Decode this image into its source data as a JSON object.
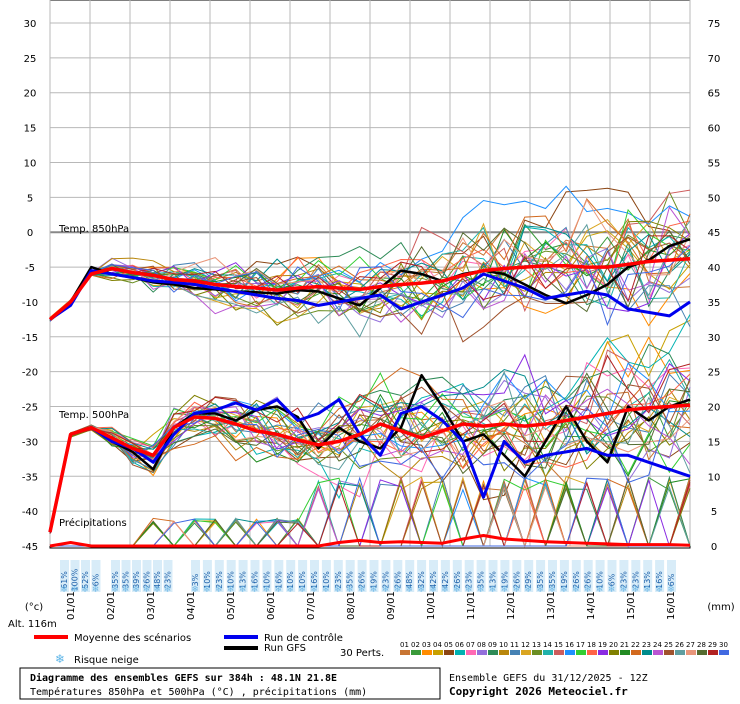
{
  "chart_data": {
    "type": "line",
    "left_axis": {
      "unit": "(°c)",
      "ticks": [
        30,
        25,
        20,
        15,
        10,
        5,
        0,
        -5,
        -10,
        -15,
        -20,
        -25,
        -30,
        -35,
        -40,
        -45
      ],
      "range": [
        -45,
        30
      ]
    },
    "right_axis": {
      "unit": "(mm)",
      "ticks": [
        75,
        70,
        65,
        60,
        55,
        50,
        45,
        40,
        35,
        30,
        25,
        20,
        15,
        10,
        5,
        0
      ],
      "range": [
        0,
        75
      ]
    },
    "x_dates": [
      "01/01",
      "02/01",
      "03/01",
      "04/01",
      "05/01",
      "06/01",
      "07/01",
      "08/01",
      "09/01",
      "10/01",
      "11/01",
      "12/01",
      "13/01",
      "14/01",
      "15/01",
      "16/01"
    ],
    "x_hours_range": [
      0,
      384
    ],
    "panel_labels": {
      "t850": "Temp. 850hPa",
      "t500": "Temp. 500hPa",
      "precip": "Précipitations"
    },
    "altitude": "Alt. 116m",
    "snow_risk_pct": [
      "61%",
      "100%",
      "52%",
      "6%",
      "35%",
      "35%",
      "39%",
      "26%",
      "48%",
      "23%",
      "3%",
      "10%",
      "23%",
      "10%",
      "13%",
      "16%",
      "10%",
      "16%",
      "10%",
      "10%",
      "16%",
      "10%",
      "23%",
      "35%",
      "26%",
      "19%",
      "23%",
      "26%",
      "48%",
      "32%",
      "42%",
      "42%",
      "26%",
      "23%",
      "35%",
      "13%",
      "19%",
      "26%",
      "29%",
      "35%",
      "35%",
      "19%",
      "26%",
      "26%",
      "10%",
      "6%",
      "23%",
      "23%",
      "13%",
      "16%",
      "6%"
    ],
    "t850": {
      "mean": [
        -12.5,
        -10,
        -6,
        -5.2,
        -5.8,
        -6.2,
        -6.8,
        -7,
        -7.5,
        -7.8,
        -8,
        -8.3,
        -8,
        -7.8,
        -8,
        -8.2,
        -7.8,
        -7.5,
        -7.3,
        -7,
        -6.2,
        -5.5,
        -5.2,
        -5,
        -4.8,
        -4.8,
        -5,
        -5,
        -4.6,
        -4.2,
        -4,
        -3.8
      ],
      "control": [
        -12.5,
        -10.5,
        -5.5,
        -6,
        -6.5,
        -7,
        -7.2,
        -7.5,
        -8,
        -8.5,
        -9,
        -9.5,
        -9.8,
        -10.5,
        -10,
        -9.5,
        -9,
        -11,
        -10,
        -9,
        -8,
        -6,
        -7,
        -8,
        -9.5,
        -9,
        -8.5,
        -9,
        -11,
        -11.5,
        -12,
        -10
      ],
      "gfs": [
        -12.5,
        -10,
        -5,
        -6,
        -6.5,
        -7.2,
        -7.5,
        -8,
        -8.2,
        -8.5,
        -8.6,
        -8.8,
        -8.3,
        -8.5,
        -9.5,
        -10.5,
        -8,
        -5.5,
        -6,
        -7,
        -6,
        -5.5,
        -6,
        -7.5,
        -9,
        -10.2,
        -9,
        -7.5,
        -5,
        -4,
        -2,
        -1
      ]
    },
    "t500": {
      "mean": [
        -43,
        -29,
        -28,
        -29.5,
        -31,
        -32,
        -28,
        -26.5,
        -26.7,
        -27.5,
        -28.5,
        -29,
        -29.8,
        -30.5,
        -30,
        -29,
        -27.5,
        -28.5,
        -29.5,
        -28.5,
        -27.5,
        -27.8,
        -27.5,
        -27.8,
        -27.5,
        -27,
        -26.5,
        -26,
        -25.5,
        -25.2,
        -25,
        -24.8
      ],
      "control": [
        -43,
        -29,
        -28,
        -30,
        -31,
        -33,
        -29,
        -26,
        -25.5,
        -24.5,
        -25.5,
        -24,
        -27,
        -26,
        -24,
        -29,
        -32,
        -26,
        -25,
        -27,
        -30,
        -38,
        -30,
        -33,
        -32,
        -31.5,
        -31,
        -32,
        -32,
        -33,
        -34,
        -35
      ],
      "gfs": [
        -43,
        -29,
        -28,
        -30,
        -31.5,
        -34,
        -28,
        -26,
        -26,
        -27,
        -25.5,
        -25,
        -26.5,
        -31,
        -28,
        -30,
        -31,
        -28,
        -20.5,
        -25,
        -30,
        -29,
        -32,
        -35,
        -30,
        -25,
        -30,
        -33,
        -25,
        -27,
        -25,
        -24
      ]
    },
    "precip_mean_mm": [
      0,
      0.5,
      0,
      0,
      0,
      0,
      0,
      0,
      0,
      0,
      0,
      0,
      0,
      0,
      0.5,
      0.8,
      0.5,
      0.6,
      0.5,
      0.4,
      1,
      1.5,
      1,
      0.8,
      0.6,
      0.5,
      0.4,
      0.3,
      0.2,
      0.2,
      0.2,
      0.1
    ],
    "legend": [
      {
        "label": "Moyenne des scénarios",
        "color": "#ff0000"
      },
      {
        "label": "Run de contrôle",
        "color": "#0000ee"
      },
      {
        "label": "Run GFS",
        "color": "#000000"
      },
      {
        "label": "Risque neige",
        "color": "#5fb6e8"
      }
    ],
    "perts_label": "30 Perts.",
    "pert_numbers": [
      "01",
      "02",
      "03",
      "04",
      "05",
      "06",
      "07",
      "08",
      "09",
      "10",
      "11",
      "12",
      "13",
      "14",
      "15",
      "16",
      "17",
      "18",
      "19",
      "20",
      "21",
      "22",
      "23",
      "24",
      "25",
      "26",
      "27",
      "28",
      "29",
      "30"
    ],
    "pert_colors": [
      "#c87533",
      "#3a9a3a",
      "#ff8c00",
      "#c8a000",
      "#8b4513",
      "#00b2b2",
      "#ff69b4",
      "#9370db",
      "#2e8b57",
      "#b8860b",
      "#4682b4",
      "#daa520",
      "#6b8e23",
      "#20b2aa",
      "#cd5c5c",
      "#1e90ff",
      "#32cd32",
      "#ff6347",
      "#8a2be2",
      "#808000",
      "#228b22",
      "#d2691e",
      "#008b8b",
      "#ba55d3",
      "#a0522d",
      "#5f9ea0",
      "#e9967a",
      "#556b2f",
      "#b22222",
      "#4169e1"
    ]
  },
  "footer": {
    "title": "Diagramme des ensembles GEFS sur 384h : 48.1N 21.8E",
    "subtitle": "Températures 850hPa et 500hPa (°C) , précipitations (mm)",
    "run": "Ensemble GEFS du 31/12/2025 - 12Z",
    "copyright": "Copyright 2026 Meteociel.fr"
  }
}
